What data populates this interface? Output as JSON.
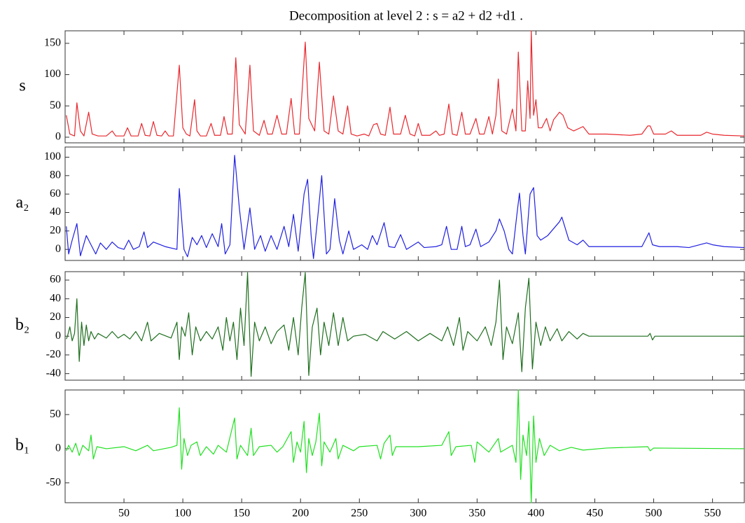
{
  "chart_data": [
    {
      "type": "line",
      "title": "Decomposition at level 2 : s = a2 + d2 +d1 .",
      "ylabel": "s",
      "color": "#e8282e",
      "xlim": [
        0,
        577
      ],
      "ylim": [
        -9,
        170
      ],
      "yticks": [
        0,
        50,
        100,
        150
      ],
      "x": [
        1,
        4,
        8,
        10,
        13,
        16,
        20,
        23,
        28,
        35,
        40,
        43,
        50,
        53,
        56,
        62,
        65,
        68,
        72,
        75,
        78,
        82,
        85,
        88,
        92,
        97,
        100,
        103,
        106,
        110,
        112,
        115,
        120,
        124,
        127,
        132,
        135,
        138,
        142,
        145,
        148,
        153,
        157,
        160,
        165,
        169,
        172,
        176,
        180,
        184,
        188,
        192,
        195,
        199,
        204,
        207,
        212,
        216,
        220,
        224,
        228,
        232,
        236,
        240,
        243,
        248,
        254,
        258,
        262,
        265,
        268,
        272,
        276,
        279,
        285,
        289,
        293,
        297,
        300,
        303,
        310,
        315,
        318,
        322,
        326,
        329,
        333,
        337,
        340,
        344,
        349,
        352,
        356,
        360,
        363,
        366,
        368,
        371,
        375,
        380,
        383,
        385,
        388,
        391,
        393,
        395,
        396,
        398,
        400,
        402,
        405,
        409,
        412,
        415,
        418,
        420,
        423,
        427,
        432,
        440,
        445,
        460,
        480,
        490,
        495,
        497,
        500,
        510,
        515,
        520,
        540,
        545,
        550,
        560,
        577
      ],
      "values": [
        35,
        5,
        2,
        55,
        10,
        2,
        40,
        5,
        2,
        2,
        10,
        2,
        2,
        15,
        2,
        2,
        22,
        3,
        2,
        25,
        3,
        2,
        10,
        2,
        2,
        115,
        15,
        5,
        2,
        60,
        10,
        2,
        2,
        22,
        3,
        3,
        33,
        5,
        5,
        127,
        20,
        5,
        115,
        10,
        3,
        27,
        5,
        5,
        35,
        5,
        5,
        62,
        5,
        5,
        152,
        30,
        10,
        120,
        10,
        5,
        66,
        10,
        5,
        50,
        5,
        2,
        5,
        2,
        20,
        22,
        5,
        3,
        48,
        5,
        5,
        35,
        5,
        2,
        22,
        3,
        3,
        10,
        3,
        5,
        53,
        5,
        3,
        40,
        5,
        5,
        30,
        5,
        5,
        33,
        5,
        35,
        93,
        10,
        5,
        45,
        10,
        136,
        10,
        10,
        90,
        30,
        170,
        35,
        60,
        15,
        15,
        30,
        10,
        28,
        35,
        40,
        35,
        15,
        10,
        17,
        5,
        5,
        3,
        5,
        18,
        18,
        5,
        5,
        10,
        3,
        3,
        8,
        5,
        3,
        2
      ]
    },
    {
      "type": "line",
      "ylabel": "a₂",
      "color": "#2020e0",
      "xlim": [
        0,
        577
      ],
      "ylim": [
        -12,
        111
      ],
      "yticks": [
        0,
        20,
        40,
        60,
        80,
        100
      ],
      "x": [
        1,
        3,
        6,
        10,
        13,
        18,
        22,
        26,
        30,
        35,
        40,
        45,
        50,
        54,
        58,
        63,
        67,
        70,
        75,
        85,
        95,
        97,
        101,
        104,
        108,
        112,
        116,
        120,
        125,
        130,
        133,
        136,
        140,
        144,
        148,
        152,
        157,
        161,
        166,
        170,
        175,
        180,
        186,
        190,
        194,
        198,
        203,
        206,
        209,
        211,
        215,
        218,
        222,
        225,
        229,
        233,
        236,
        241,
        245,
        252,
        257,
        261,
        265,
        271,
        275,
        280,
        285,
        290,
        300,
        305,
        315,
        320,
        324,
        328,
        333,
        337,
        340,
        344,
        349,
        353,
        360,
        366,
        369,
        373,
        377,
        380,
        384,
        386,
        389,
        391,
        395,
        398,
        401,
        404,
        410,
        420,
        422,
        428,
        435,
        440,
        445,
        460,
        490,
        496,
        499,
        505,
        520,
        530,
        545,
        550,
        560,
        577
      ],
      "values": [
        25,
        -5,
        10,
        28,
        -7,
        15,
        5,
        -5,
        7,
        0,
        8,
        2,
        0,
        10,
        0,
        3,
        19,
        2,
        8,
        3,
        0,
        66,
        0,
        -8,
        13,
        5,
        15,
        2,
        17,
        3,
        28,
        -5,
        5,
        102,
        45,
        0,
        45,
        0,
        15,
        -2,
        15,
        0,
        25,
        3,
        38,
        -2,
        60,
        76,
        15,
        -10,
        40,
        80,
        -5,
        0,
        55,
        10,
        -5,
        20,
        0,
        5,
        0,
        15,
        5,
        29,
        3,
        2,
        16,
        0,
        8,
        2,
        3,
        5,
        25,
        0,
        0,
        25,
        3,
        5,
        22,
        3,
        8,
        20,
        33,
        20,
        0,
        -5,
        40,
        61,
        15,
        -5,
        60,
        67,
        15,
        10,
        15,
        30,
        35,
        10,
        5,
        10,
        3,
        3,
        3,
        18,
        5,
        3,
        3,
        2,
        7,
        5,
        3,
        2
      ]
    },
    {
      "type": "line",
      "ylabel": "b₂",
      "color": "#1e6e1e",
      "xlim": [
        0,
        577
      ],
      "ylim": [
        -47,
        69
      ],
      "yticks": [
        -40,
        -20,
        0,
        20,
        40,
        60
      ],
      "x": [
        1,
        2,
        4,
        6,
        8,
        10,
        12,
        14,
        16,
        18,
        20,
        22,
        25,
        28,
        35,
        40,
        45,
        50,
        55,
        60,
        65,
        70,
        73,
        80,
        90,
        95,
        97,
        99,
        102,
        105,
        108,
        111,
        115,
        120,
        125,
        130,
        134,
        137,
        140,
        143,
        146,
        149,
        152,
        155,
        158,
        161,
        165,
        170,
        175,
        180,
        186,
        190,
        194,
        198,
        201,
        204,
        207,
        210,
        214,
        217,
        220,
        224,
        228,
        232,
        236,
        240,
        245,
        255,
        265,
        270,
        280,
        290,
        300,
        310,
        320,
        325,
        330,
        335,
        338,
        342,
        350,
        357,
        362,
        366,
        369,
        372,
        375,
        380,
        385,
        388,
        391,
        394,
        397,
        400,
        404,
        408,
        412,
        418,
        422,
        428,
        435,
        440,
        445,
        495,
        497,
        499,
        501,
        577
      ],
      "values": [
        -3,
        0,
        10,
        -5,
        3,
        40,
        -27,
        15,
        -10,
        12,
        -5,
        5,
        -3,
        3,
        -2,
        5,
        -2,
        2,
        -3,
        5,
        -5,
        15,
        -5,
        3,
        -2,
        15,
        -25,
        10,
        0,
        25,
        -20,
        10,
        -5,
        5,
        -3,
        10,
        -15,
        20,
        -5,
        15,
        -25,
        30,
        -10,
        68,
        -43,
        15,
        -5,
        10,
        -8,
        5,
        12,
        -15,
        20,
        -20,
        30,
        68,
        -42,
        10,
        30,
        -20,
        15,
        -10,
        25,
        -10,
        20,
        -5,
        0,
        2,
        -5,
        5,
        -3,
        5,
        -5,
        3,
        -5,
        10,
        -10,
        20,
        -15,
        5,
        -5,
        10,
        -10,
        15,
        60,
        -25,
        10,
        -8,
        25,
        -38,
        30,
        62,
        -35,
        15,
        -10,
        10,
        -5,
        8,
        -5,
        5,
        -3,
        3,
        0,
        0,
        3,
        -4,
        0,
        0
      ]
    },
    {
      "type": "line",
      "ylabel": "b₁",
      "color": "#20e020",
      "xlim": [
        0,
        577
      ],
      "ylim": [
        -79,
        86
      ],
      "yticks": [
        -50,
        0,
        50
      ],
      "xticks": [
        50,
        100,
        150,
        200,
        250,
        300,
        350,
        400,
        450,
        500,
        550
      ],
      "x": [
        1,
        3,
        6,
        9,
        12,
        15,
        20,
        22,
        24,
        27,
        35,
        50,
        60,
        70,
        75,
        90,
        95,
        97,
        99,
        101,
        104,
        107,
        112,
        115,
        120,
        126,
        130,
        137,
        144,
        146,
        149,
        155,
        158,
        160,
        165,
        175,
        180,
        185,
        192,
        194,
        197,
        200,
        203,
        205,
        207,
        210,
        213,
        216,
        218,
        220,
        225,
        230,
        232,
        236,
        245,
        250,
        265,
        268,
        271,
        276,
        278,
        281,
        300,
        320,
        326,
        328,
        332,
        345,
        348,
        350,
        360,
        368,
        370,
        380,
        383,
        385,
        387,
        389,
        392,
        394,
        396,
        398,
        400,
        403,
        407,
        412,
        420,
        430,
        440,
        460,
        495,
        497,
        500,
        577
      ],
      "values": [
        -3,
        5,
        -5,
        8,
        -10,
        5,
        -3,
        20,
        -15,
        3,
        0,
        3,
        -3,
        5,
        -3,
        2,
        5,
        60,
        -30,
        15,
        -10,
        5,
        10,
        -10,
        3,
        -8,
        5,
        -5,
        45,
        -15,
        5,
        -10,
        30,
        -10,
        3,
        5,
        -5,
        3,
        25,
        -20,
        10,
        -5,
        40,
        -35,
        15,
        -10,
        10,
        52,
        -25,
        10,
        -5,
        15,
        -15,
        5,
        -3,
        3,
        5,
        -15,
        8,
        20,
        -10,
        3,
        3,
        5,
        25,
        -10,
        3,
        5,
        -20,
        10,
        -5,
        15,
        -5,
        5,
        -20,
        86,
        -45,
        20,
        -10,
        40,
        -79,
        48,
        -20,
        15,
        -10,
        5,
        -3,
        2,
        -2,
        1,
        3,
        -3,
        1,
        0
      ]
    }
  ]
}
